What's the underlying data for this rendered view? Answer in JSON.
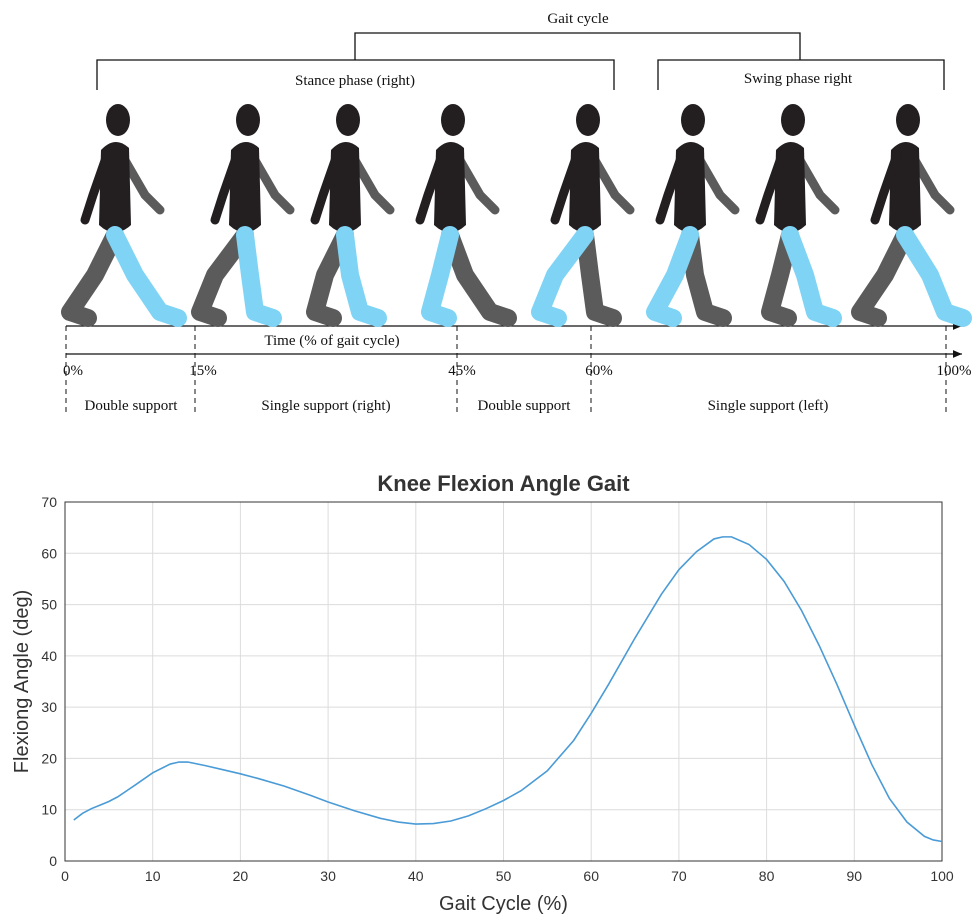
{
  "diagram": {
    "gait_cycle": "Gait cycle",
    "stance_phase": "Stance phase (right)",
    "swing_phase": "Swing phase right",
    "time_axis": "Time (% of gait cycle)",
    "percent_labels": [
      "0%",
      "15%",
      "45%",
      "60%",
      "100%"
    ],
    "support_labels": [
      "Double support",
      "Single support (right)",
      "Double support",
      "Single support (left)"
    ]
  },
  "chart_data": {
    "type": "line",
    "title": "Knee Flexion Angle Gait",
    "x_label": "Gait Cycle (%)",
    "y_label": "Flexiong Angle (deg)",
    "x": [
      1,
      2,
      3,
      4,
      5,
      6,
      8,
      10,
      12,
      13,
      14,
      16,
      18,
      20,
      22,
      25,
      28,
      30,
      33,
      36,
      38,
      40,
      42,
      44,
      46,
      48,
      50,
      52,
      55,
      58,
      60,
      62,
      65,
      68,
      70,
      72,
      74,
      75,
      76,
      78,
      80,
      82,
      84,
      86,
      88,
      90,
      92,
      94,
      96,
      98,
      99,
      100
    ],
    "series": [
      {
        "color": "#4a9bd6",
        "values": [
          8,
          9.3,
          10.2,
          10.9,
          11.6,
          12.5,
          14.8,
          17.2,
          18.9,
          19.3,
          19.3,
          18.6,
          17.8,
          17,
          16.1,
          14.6,
          12.8,
          11.5,
          9.8,
          8.3,
          7.6,
          7.2,
          7.3,
          7.8,
          8.8,
          10.2,
          11.8,
          13.7,
          17.6,
          23.5,
          28.8,
          34.5,
          43.5,
          52,
          56.8,
          60.3,
          62.8,
          63.2,
          63.2,
          61.7,
          58.8,
          54.5,
          48.8,
          42,
          34.5,
          26.5,
          18.8,
          12.2,
          7.6,
          4.8,
          4.1,
          3.8
        ]
      }
    ],
    "xlim": [
      0,
      100
    ],
    "xticks": [
      0,
      10,
      20,
      30,
      40,
      50,
      60,
      70,
      80,
      90,
      100
    ],
    "ylim": [
      0,
      70
    ],
    "yticks": [
      0,
      10,
      20,
      30,
      40,
      50,
      60,
      70
    ],
    "grid": true
  }
}
